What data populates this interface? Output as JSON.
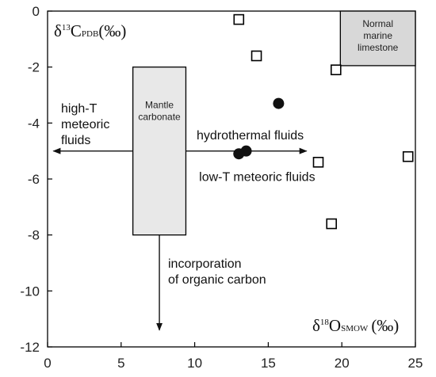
{
  "chart_data": {
    "type": "scatter",
    "xlim": [
      0,
      25
    ],
    "ylim": [
      -12,
      0
    ],
    "x_ticks": [
      0,
      5,
      10,
      15,
      20,
      25
    ],
    "y_ticks": [
      0,
      -2,
      -4,
      -6,
      -8,
      -10,
      -12
    ],
    "grid": false,
    "ylabel": {
      "main": "δ",
      "sup": "13",
      "base": "C",
      "sub": "PDB",
      "unit": "(‰)"
    },
    "xlabel": {
      "main": "δ",
      "sup": "18",
      "base": "O",
      "sub": "SMOW",
      "unit": "(‰)"
    },
    "series": [
      {
        "marker": "open-square",
        "points": [
          {
            "x": 13.0,
            "y": -0.3
          },
          {
            "x": 14.2,
            "y": -1.6
          },
          {
            "x": 19.6,
            "y": -2.1
          },
          {
            "x": 18.4,
            "y": -5.4
          },
          {
            "x": 24.5,
            "y": -5.2
          },
          {
            "x": 19.3,
            "y": -7.6
          }
        ]
      },
      {
        "marker": "filled-circle",
        "points": [
          {
            "x": 15.7,
            "y": -3.3
          },
          {
            "x": 13.5,
            "y": -5.0
          },
          {
            "x": 13.0,
            "y": -5.1
          }
        ]
      }
    ],
    "boxes": [
      {
        "label": [
          "Mantle",
          "carbonate"
        ],
        "x": [
          5.8,
          9.4
        ],
        "y": [
          -8.0,
          -2.0
        ],
        "fill": "#e8e8e8"
      },
      {
        "label": [
          "Normal",
          "marine",
          "limestone"
        ],
        "x": [
          19.9,
          25.0
        ],
        "y": [
          -1.95,
          0.0
        ],
        "fill": "#d8d8d8"
      }
    ],
    "arrows": [
      {
        "label": [
          "high-T",
          "meteoric",
          "fluids"
        ],
        "from": [
          5.8,
          -5.0
        ],
        "to": [
          0.4,
          -5.0
        ]
      },
      {
        "label": [
          "hydrothermal fluids"
        ],
        "from": [
          9.4,
          -5.0
        ],
        "to": [
          17.6,
          -5.0
        ]
      },
      {
        "label": [
          "incorporation",
          "of organic carbon"
        ],
        "from": [
          7.6,
          -8.0
        ],
        "to": [
          7.6,
          -11.4
        ]
      }
    ],
    "annotations": [
      {
        "text": "low-T meteoric fluids",
        "x": 10.3,
        "y": -5.9
      }
    ]
  }
}
